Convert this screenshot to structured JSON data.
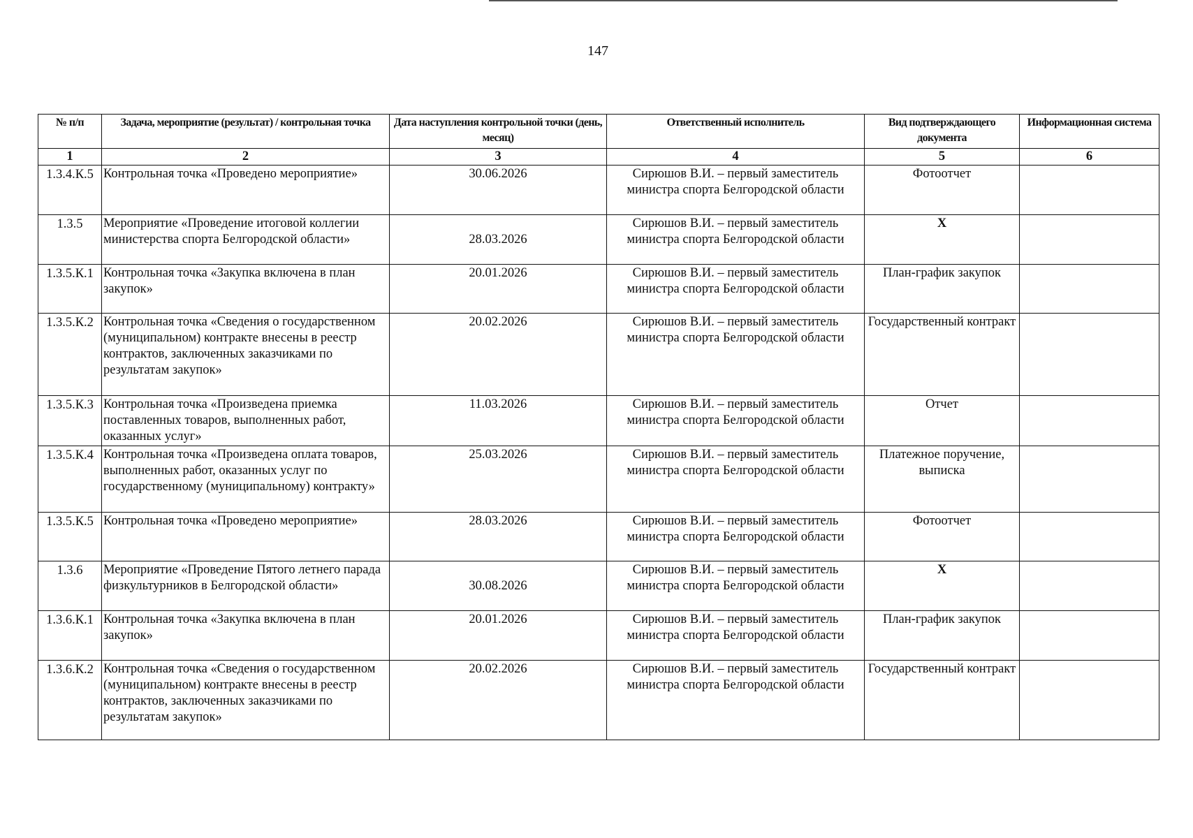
{
  "page_number": "147",
  "table": {
    "headers": [
      "№ п/п",
      "Задача, мероприятие (результат) / контрольная точка",
      "Дата наступления контрольной точки (день, месяц)",
      "Ответственный исполнитель",
      "Вид подтверждающего документа",
      "Информационная система"
    ],
    "column_numbers": [
      "1",
      "2",
      "3",
      "4",
      "5",
      "6"
    ],
    "rows": [
      {
        "num": "1.3.4.К.5",
        "task": "Контрольная точка «Проведено мероприятие»",
        "date": "30.06.2026",
        "resp": "Сирюшов В.И. – первый заместитель министра спорта Белгородской области",
        "doc": "Фотоотчет",
        "sys": ""
      },
      {
        "num": "1.3.5",
        "task": "Мероприятие «Проведение итоговой коллегии министерства спорта Белгородской области»",
        "date": "28.03.2026",
        "resp": "Сирюшов В.И. – первый заместитель министра спорта Белгородской области",
        "doc": "Х",
        "sys": ""
      },
      {
        "num": "1.3.5.К.1",
        "task": "Контрольная точка «Закупка включена в план закупок»",
        "date": "20.01.2026",
        "resp": "Сирюшов В.И. – первый заместитель министра спорта Белгородской области",
        "doc": "План-график закупок",
        "sys": ""
      },
      {
        "num": "1.3.5.К.2",
        "task": "Контрольная точка «Сведения о государственном (муниципальном) контракте внесены в реестр контрактов, заключенных заказчиками по результатам закупок»",
        "date": "20.02.2026",
        "resp": "Сирюшов В.И. – первый заместитель министра спорта Белгородской области",
        "doc": "Государственный контракт",
        "sys": ""
      },
      {
        "num": "1.3.5.К.3",
        "task": "Контрольная точка «Произведена приемка поставленных товаров, выполненных работ, оказанных услуг»",
        "date": "11.03.2026",
        "resp": "Сирюшов В.И. – первый заместитель министра спорта Белгородской области",
        "doc": "Отчет",
        "sys": ""
      },
      {
        "num": "1.3.5.К.4",
        "task": "Контрольная точка «Произведена оплата товаров, выполненных работ, оказанных услуг по государственному (муниципальному) контракту»",
        "date": "25.03.2026",
        "resp": "Сирюшов В.И. – первый заместитель министра спорта Белгородской области",
        "doc": "Платежное поручение, выписка",
        "sys": ""
      },
      {
        "num": "1.3.5.К.5",
        "task": "Контрольная точка «Проведено мероприятие»",
        "date": "28.03.2026",
        "resp": "Сирюшов В.И. – первый заместитель министра спорта Белгородской области",
        "doc": "Фотоотчет",
        "sys": ""
      },
      {
        "num": "1.3.6",
        "task": "Мероприятие «Проведение Пятого летнего парада физкультурников в Белгородской области»",
        "date": "30.08.2026",
        "resp": "Сирюшов В.И. – первый заместитель министра спорта Белгородской области",
        "doc": "Х",
        "sys": ""
      },
      {
        "num": "1.3.6.К.1",
        "task": "Контрольная точка «Закупка включена в план закупок»",
        "date": "20.01.2026",
        "resp": "Сирюшов В.И. – первый заместитель министра спорта Белгородской области",
        "doc": "План-график закупок",
        "sys": ""
      },
      {
        "num": "1.3.6.К.2",
        "task": "Контрольная точка «Сведения о государственном (муниципальном) контракте внесены в реестр контрактов, заключенных заказчиками по результатам закупок»",
        "date": "20.02.2026",
        "resp": "Сирюшов В.И. – первый заместитель министра спорта Белгородской области",
        "doc": "Государственный контракт",
        "sys": ""
      }
    ]
  }
}
